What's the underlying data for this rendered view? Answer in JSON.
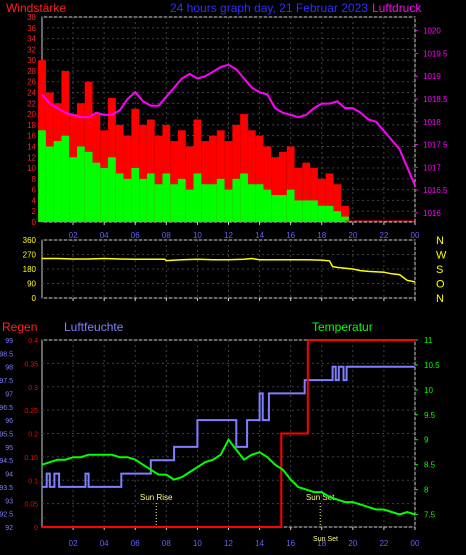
{
  "header": {
    "left_label": "Windstärke",
    "title": "24 hours graph day, 21 Februar 2023",
    "right_label": "Luftdruck"
  },
  "colors": {
    "background": "#000000",
    "frame": "#d0d0d0",
    "grid": "#404040",
    "wind_axis": "#ff2020",
    "pressure": "#ff00ff",
    "gust": "#ff0000",
    "wind": "#00ff00",
    "direction": "#ffff00",
    "direction_axis": "#ffff00",
    "rain": "#ff0000",
    "humidity": "#7f7fff",
    "temperature": "#00ff00",
    "temperature_axis": "#00ff00",
    "sun_marker": "#ffff80"
  },
  "x_ticks": [
    "02",
    "04",
    "06",
    "08",
    "10",
    "12",
    "14",
    "16",
    "18",
    "20",
    "22",
    "00"
  ],
  "chart_data": [
    {
      "type": "line",
      "title": "24 hours graph day, 21 Februar 2023",
      "xlabel": "",
      "x_unit": "hour",
      "x_range": [
        0,
        24
      ],
      "y_left": {
        "label": "Windstärke",
        "ylim": [
          0,
          38
        ],
        "ticks": [
          0,
          2,
          4,
          6,
          8,
          10,
          12,
          14,
          16,
          18,
          20,
          22,
          24,
          26,
          28,
          30,
          32,
          34,
          36,
          38
        ]
      },
      "y_right": {
        "label": "Luftdruck",
        "ylim": [
          1015.8,
          1020.3
        ],
        "ticks": [
          "1016",
          "1016.5",
          "1017",
          "1017.5",
          "1018",
          "1018.5",
          "1019",
          "1019.5",
          "1020"
        ]
      },
      "series": [
        {
          "name": "Luftdruck",
          "axis": "right",
          "x": [
            0,
            0.5,
            1,
            1.5,
            2,
            2.5,
            3,
            3.5,
            4,
            4.5,
            5,
            5.5,
            6,
            6.5,
            7,
            7.5,
            8,
            8.5,
            9,
            9.5,
            10,
            10.5,
            11,
            11.5,
            12,
            12.5,
            13,
            13.5,
            14,
            14.5,
            15,
            15.5,
            16,
            16.5,
            17,
            17.5,
            18,
            18.5,
            19,
            19.5,
            20,
            20.5,
            21,
            21.5,
            22,
            22.5,
            23,
            23.5,
            24
          ],
          "y": [
            1018.6,
            1018.4,
            1018.3,
            1018.2,
            1018.15,
            1018.1,
            1018.1,
            1018.2,
            1018.15,
            1018.15,
            1018.25,
            1018.5,
            1018.65,
            1018.45,
            1018.35,
            1018.35,
            1018.55,
            1018.75,
            1018.95,
            1019.05,
            1018.95,
            1019.0,
            1019.1,
            1019.2,
            1019.25,
            1019.15,
            1018.95,
            1018.75,
            1018.65,
            1018.6,
            1018.3,
            1018.2,
            1018.15,
            1018.1,
            1018.15,
            1018.3,
            1018.4,
            1018.4,
            1018.45,
            1018.3,
            1018.3,
            1018.2,
            1018.05,
            1018.0,
            1017.8,
            1017.6,
            1017.4,
            1017.0,
            1016.6
          ]
        },
        {
          "name": "gust",
          "style": "bars",
          "axis": "left",
          "x": [
            0,
            0.5,
            1,
            1.5,
            2,
            2.5,
            3,
            3.5,
            4,
            4.5,
            5,
            5.5,
            6,
            6.5,
            7,
            7.5,
            8,
            8.5,
            9,
            9.5,
            10,
            10.5,
            11,
            11.5,
            12,
            12.5,
            13,
            13.5,
            14,
            14.5,
            15,
            15.5,
            16,
            16.5,
            17,
            17.5,
            18,
            18.5,
            19,
            19.5,
            20,
            20.5,
            21,
            21.5,
            22,
            22.5,
            23,
            23.5,
            24
          ],
          "y": [
            30,
            24,
            22,
            28,
            20,
            22,
            26,
            20,
            17,
            23,
            18,
            16,
            21,
            18,
            19,
            16,
            18,
            15,
            17,
            14,
            19,
            15,
            16,
            17,
            15,
            18,
            20,
            17,
            16,
            14,
            12,
            13,
            14,
            10,
            11,
            10,
            8,
            9,
            7,
            3,
            0,
            0,
            0,
            0,
            0,
            0,
            0,
            0,
            0
          ]
        },
        {
          "name": "wind",
          "style": "bars",
          "axis": "left",
          "x": [
            0,
            0.5,
            1,
            1.5,
            2,
            2.5,
            3,
            3.5,
            4,
            4.5,
            5,
            5.5,
            6,
            6.5,
            7,
            7.5,
            8,
            8.5,
            9,
            9.5,
            10,
            10.5,
            11,
            11.5,
            12,
            12.5,
            13,
            13.5,
            14,
            14.5,
            15,
            15.5,
            16,
            16.5,
            17,
            17.5,
            18,
            18.5,
            19,
            19.5,
            20,
            20.5,
            21,
            21.5,
            22,
            22.5,
            23,
            23.5,
            24
          ],
          "y": [
            17,
            14,
            15,
            16,
            12,
            14,
            13,
            11,
            10,
            12,
            9,
            8,
            10,
            8,
            9,
            7,
            9,
            7,
            8,
            6,
            9,
            7,
            7,
            8,
            6,
            8,
            9,
            7,
            7,
            6,
            5,
            5,
            6,
            4,
            4,
            4,
            3,
            3,
            2,
            1,
            0,
            0,
            0,
            0,
            0,
            0,
            0,
            0,
            0
          ]
        }
      ]
    },
    {
      "type": "line",
      "x_unit": "hour",
      "x_range": [
        0,
        24
      ],
      "ylim": [
        0,
        360
      ],
      "y_ticks": [
        0,
        90,
        180,
        270,
        360
      ],
      "direction_labels": [
        "N",
        "W",
        "S",
        "O",
        "N"
      ],
      "series": [
        {
          "name": "Windrichtung",
          "x": [
            0,
            1,
            2,
            3,
            4,
            5,
            6,
            7,
            7.9,
            8,
            9,
            10,
            11,
            12,
            13,
            13.5,
            14,
            15,
            16,
            17,
            18,
            18.5,
            18.7,
            19,
            19.5,
            20,
            20.5,
            21,
            22,
            22.5,
            23,
            23.5,
            24
          ],
          "y": [
            245,
            245,
            242,
            242,
            245,
            242,
            240,
            240,
            240,
            232,
            238,
            240,
            238,
            238,
            240,
            245,
            238,
            238,
            238,
            238,
            235,
            230,
            195,
            190,
            185,
            180,
            170,
            165,
            160,
            150,
            145,
            110,
            100
          ]
        }
      ]
    },
    {
      "type": "line",
      "x_unit": "hour",
      "x_range": [
        0,
        24
      ],
      "y_left_rain": {
        "label": "Regen",
        "ylim": [
          0,
          0.4
        ],
        "ticks": [
          "0",
          "0.05",
          "0.1",
          "0.15",
          "0.2",
          "0.25",
          "0.3",
          "0.35",
          "0.4"
        ]
      },
      "y_left_humidity": {
        "label": "Luftfeuchte",
        "ylim": [
          92,
          99
        ],
        "ticks": [
          "92",
          "92.5",
          "93",
          "93.5",
          "94",
          "94.5",
          "95",
          "95.5",
          "96",
          "96.5",
          "97",
          "97.5",
          "98",
          "98.5",
          "99"
        ]
      },
      "y_right": {
        "label": "Temperatur",
        "ylim": [
          7.25,
          11
        ],
        "ticks": [
          "7.5",
          "8",
          "8.5",
          "9",
          "9.5",
          "10",
          "10.5",
          "11"
        ]
      },
      "annotations": [
        {
          "text": "Sun Rise",
          "x": 7.35
        },
        {
          "text": "Sun Set",
          "x": 17.9
        },
        {
          "text": "Sun Set",
          "x": 18.5
        }
      ],
      "series": [
        {
          "name": "Regen",
          "axis": "rain",
          "x": [
            0,
            15.4,
            15.4,
            17.1,
            17.1,
            24
          ],
          "y": [
            0,
            0,
            0.2,
            0.2,
            0.4,
            0.4
          ]
        },
        {
          "name": "Luftfeuchte",
          "axis": "humidity",
          "x": [
            0,
            0.3,
            0.3,
            0.5,
            0.5,
            0.8,
            0.8,
            1.1,
            1.1,
            1.3,
            1.3,
            2.8,
            2.8,
            3.0,
            3.0,
            5.1,
            5.1,
            7.0,
            7.0,
            8.5,
            8.5,
            10.0,
            10.0,
            12.5,
            12.5,
            13.2,
            13.2,
            14.0,
            14.0,
            14.2,
            14.2,
            14.6,
            14.6,
            16.9,
            16.9,
            18.7,
            18.7,
            18.9,
            18.9,
            19.1,
            19.1,
            19.4,
            19.4,
            19.6,
            19.6,
            24
          ],
          "y": [
            93.5,
            93.5,
            94,
            94,
            93.5,
            93.5,
            94,
            94,
            93.5,
            93.5,
            93.5,
            93.5,
            94,
            94,
            93.5,
            93.5,
            94,
            94,
            94.5,
            94.5,
            95,
            95,
            96,
            96,
            95,
            95,
            96,
            96,
            97,
            97,
            96,
            96,
            97,
            97,
            97.5,
            97.5,
            98,
            98,
            97.5,
            97.5,
            98,
            98,
            97.5,
            97.5,
            98,
            98
          ]
        },
        {
          "name": "Temperatur",
          "axis": "right",
          "x": [
            0,
            0.5,
            1,
            1.5,
            2,
            2.5,
            3,
            3.5,
            4,
            4.5,
            5,
            5.5,
            6,
            6.5,
            7,
            7.5,
            8,
            8.5,
            9,
            9.5,
            10,
            10.5,
            11,
            11.5,
            12,
            12.5,
            13,
            13.5,
            14,
            14.5,
            15,
            15.5,
            16,
            16.5,
            17,
            17.5,
            18,
            18.5,
            19,
            19.5,
            20,
            20.5,
            21,
            21.5,
            22,
            22.5,
            23,
            23.5,
            24
          ],
          "y": [
            8.5,
            8.55,
            8.6,
            8.6,
            8.65,
            8.65,
            8.7,
            8.7,
            8.7,
            8.7,
            8.65,
            8.65,
            8.6,
            8.5,
            8.4,
            8.3,
            8.3,
            8.2,
            8.25,
            8.35,
            8.45,
            8.55,
            8.6,
            8.7,
            9.0,
            8.8,
            8.6,
            8.7,
            8.75,
            8.65,
            8.5,
            8.4,
            8.2,
            8.05,
            8.0,
            7.95,
            7.95,
            7.85,
            7.8,
            7.75,
            7.75,
            7.7,
            7.65,
            7.6,
            7.6,
            7.55,
            7.5,
            7.55,
            7.5
          ]
        }
      ]
    }
  ],
  "panel3_labels": {
    "rain": "Regen",
    "humidity": "Luftfeuchte",
    "temperature": "Temperatur"
  }
}
